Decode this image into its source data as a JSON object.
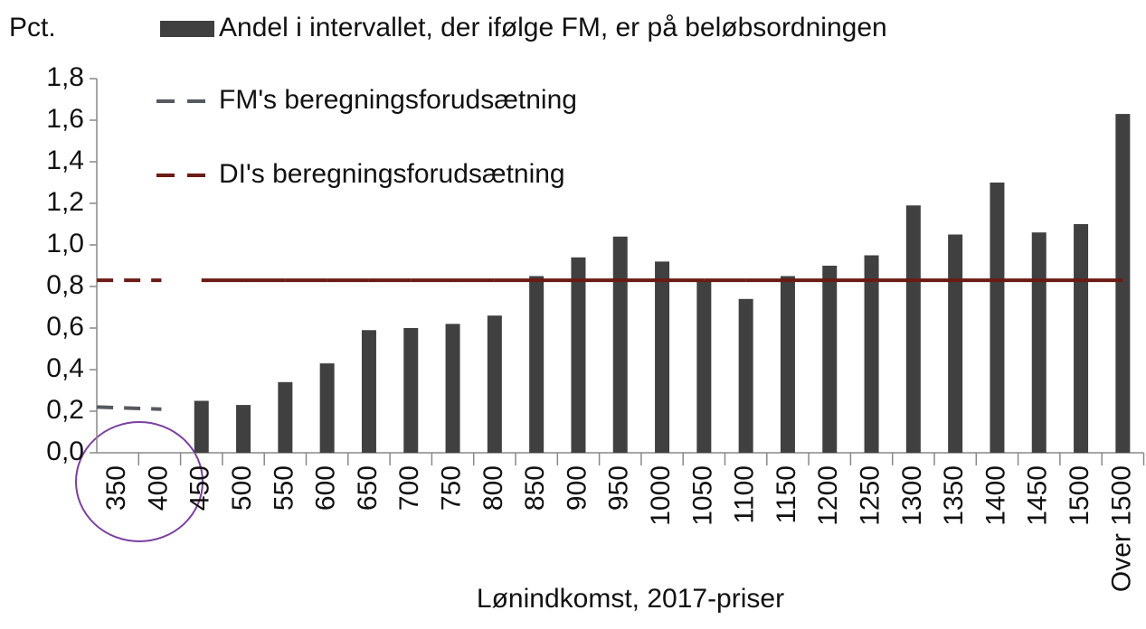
{
  "chart_data": {
    "type": "bar",
    "y_title": "Pct.",
    "x_label": "Lønindkomst, 2017-priser",
    "categories": [
      "350",
      "400",
      "450",
      "500",
      "550",
      "600",
      "650",
      "700",
      "750",
      "800",
      "850",
      "900",
      "950",
      "1000",
      "1050",
      "1100",
      "1150",
      "1200",
      "1250",
      "1300",
      "1350",
      "1400",
      "1450",
      "1500",
      "Over 1500"
    ],
    "series": [
      {
        "name": "Andel i intervallet, der ifølge FM, er på beløbsordningen",
        "color": "#404040",
        "type": "bar",
        "values": [
          null,
          null,
          0.25,
          0.23,
          0.34,
          0.43,
          0.59,
          0.6,
          0.62,
          0.66,
          0.85,
          0.94,
          1.04,
          0.92,
          0.83,
          0.74,
          0.85,
          0.9,
          0.95,
          1.19,
          1.05,
          1.3,
          1.06,
          1.1,
          1.63
        ]
      },
      {
        "name": "FM's beregningsforudsætning",
        "color": "#555a60",
        "type": "line",
        "values": [
          0.22,
          0.21,
          null,
          null,
          null,
          null,
          null,
          null,
          null,
          null,
          null,
          null,
          null,
          null,
          null,
          null,
          null,
          null,
          null,
          null,
          null,
          null,
          null,
          null,
          null
        ]
      },
      {
        "name": "DI's beregningsforudsætning",
        "color": "#6b1a14",
        "type": "line",
        "values": [
          0.83,
          0.83,
          0.83,
          0.83,
          0.83,
          0.83,
          0.83,
          0.83,
          0.83,
          0.83,
          0.83,
          0.83,
          0.83,
          0.83,
          0.83,
          0.83,
          0.83,
          0.83,
          0.83,
          0.83,
          0.83,
          0.83,
          0.83,
          0.83,
          0.83
        ]
      }
    ],
    "ylim": [
      0,
      1.8
    ],
    "yticks": [
      {
        "value": 0,
        "label": "0,0"
      },
      {
        "value": 0.2,
        "label": "0,2"
      },
      {
        "value": 0.4,
        "label": "0,4"
      },
      {
        "value": 0.6,
        "label": "0,6"
      },
      {
        "value": 0.8,
        "label": "0,8"
      },
      {
        "value": 1.0,
        "label": "1,0"
      },
      {
        "value": 1.2,
        "label": "1,2"
      },
      {
        "value": 1.4,
        "label": "1,4"
      },
      {
        "value": 1.6,
        "label": "1,6"
      },
      {
        "value": 1.8,
        "label": "1,8"
      }
    ],
    "grid": false
  }
}
